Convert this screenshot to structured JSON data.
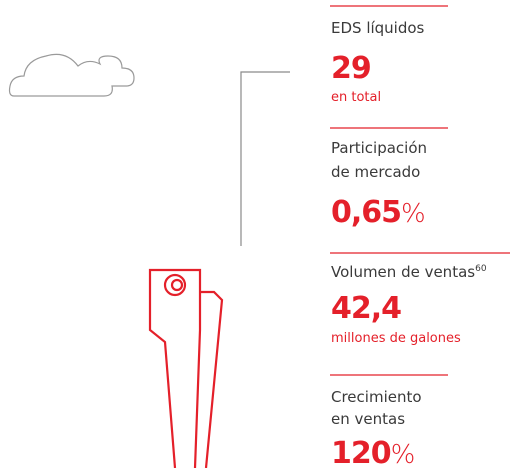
{
  "stats": [
    {
      "label": [
        "EDS líquidos"
      ],
      "value": "29",
      "note": "en total"
    },
    {
      "label": [
        "Participación",
        "de mercado"
      ],
      "value": "0,65",
      "unit": "%"
    },
    {
      "label": [
        "Volumen de ventas"
      ],
      "footnote": "60",
      "value": "42,4",
      "note": "millones de galones"
    },
    {
      "label": [
        "Crecimiento",
        "en ventas"
      ],
      "value": "120",
      "unit": "%"
    }
  ]
}
